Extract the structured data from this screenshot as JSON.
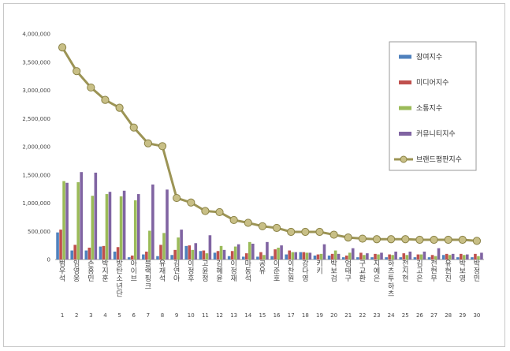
{
  "chart_data": {
    "type": "bar",
    "categories": [
      "범우석",
      "임영웅",
      "손흥민",
      "박지훈",
      "방탄소년단",
      "아이브",
      "블랙핑크",
      "유재석",
      "김연아",
      "이정후",
      "고윤정",
      "김혜윤",
      "이정재",
      "마동석",
      "공유",
      "이준호",
      "이찬원",
      "강다영",
      "키키",
      "박보검",
      "엄태구",
      "구교환",
      "지예은",
      "하츠투하츠",
      "전지현",
      "김고은",
      "전현무",
      "유현진",
      "박보영",
      "박정민"
    ],
    "ranks": [
      "1",
      "2",
      "3",
      "4",
      "5",
      "6",
      "7",
      "8",
      "9",
      "10",
      "11",
      "12",
      "13",
      "14",
      "15",
      "16",
      "17",
      "18",
      "19",
      "20",
      "21",
      "22",
      "23",
      "24",
      "25",
      "26",
      "27",
      "28",
      "29",
      "30"
    ],
    "ylim": [
      0,
      4000000
    ],
    "yticks": [
      "0",
      "500,000",
      "1,000,000",
      "1,500,000",
      "2,000,000",
      "2,500,000",
      "3,000,000",
      "3,500,000",
      "4,000,000"
    ],
    "ytick_values": [
      0,
      500000,
      1000000,
      1500000,
      2000000,
      2500000,
      3000000,
      3500000,
      4000000
    ],
    "legend_position": "right",
    "series": [
      {
        "name": "참여지수",
        "type": "bar",
        "color": "#4f81bd",
        "values": [
          480000,
          160000,
          160000,
          230000,
          140000,
          40000,
          90000,
          60000,
          80000,
          240000,
          150000,
          120000,
          60000,
          50000,
          50000,
          60000,
          90000,
          130000,
          70000,
          70000,
          40000,
          40000,
          40000,
          40000,
          40000,
          40000,
          40000,
          80000,
          40000,
          40000
        ]
      },
      {
        "name": "미디어지수",
        "type": "bar",
        "color": "#c0504d",
        "values": [
          530000,
          260000,
          210000,
          240000,
          220000,
          70000,
          140000,
          260000,
          170000,
          250000,
          160000,
          150000,
          150000,
          110000,
          130000,
          180000,
          160000,
          130000,
          90000,
          100000,
          70000,
          120000,
          100000,
          90000,
          110000,
          90000,
          80000,
          100000,
          100000,
          100000
        ]
      },
      {
        "name": "소통지수",
        "type": "bar",
        "color": "#9bbb59",
        "values": [
          1390000,
          1370000,
          1130000,
          1160000,
          1120000,
          1050000,
          510000,
          470000,
          390000,
          170000,
          110000,
          240000,
          230000,
          310000,
          80000,
          210000,
          130000,
          120000,
          100000,
          160000,
          120000,
          80000,
          90000,
          80000,
          80000,
          90000,
          60000,
          80000,
          80000,
          60000
        ]
      },
      {
        "name": "커뮤니티지수",
        "type": "bar",
        "color": "#8064a2",
        "values": [
          1360000,
          1550000,
          1540000,
          1200000,
          1220000,
          1160000,
          1330000,
          1240000,
          530000,
          290000,
          430000,
          170000,
          270000,
          280000,
          310000,
          250000,
          130000,
          120000,
          270000,
          100000,
          200000,
          110000,
          120000,
          140000,
          140000,
          140000,
          200000,
          100000,
          90000,
          120000
        ]
      },
      {
        "name": "브랜드평판지수",
        "type": "line",
        "color": "#b4a96a",
        "values": [
          3760000,
          3340000,
          3050000,
          2830000,
          2690000,
          2340000,
          2060000,
          2010000,
          1090000,
          1010000,
          860000,
          840000,
          700000,
          650000,
          590000,
          560000,
          490000,
          490000,
          490000,
          440000,
          390000,
          370000,
          360000,
          360000,
          360000,
          350000,
          350000,
          350000,
          350000,
          330000
        ]
      }
    ]
  }
}
